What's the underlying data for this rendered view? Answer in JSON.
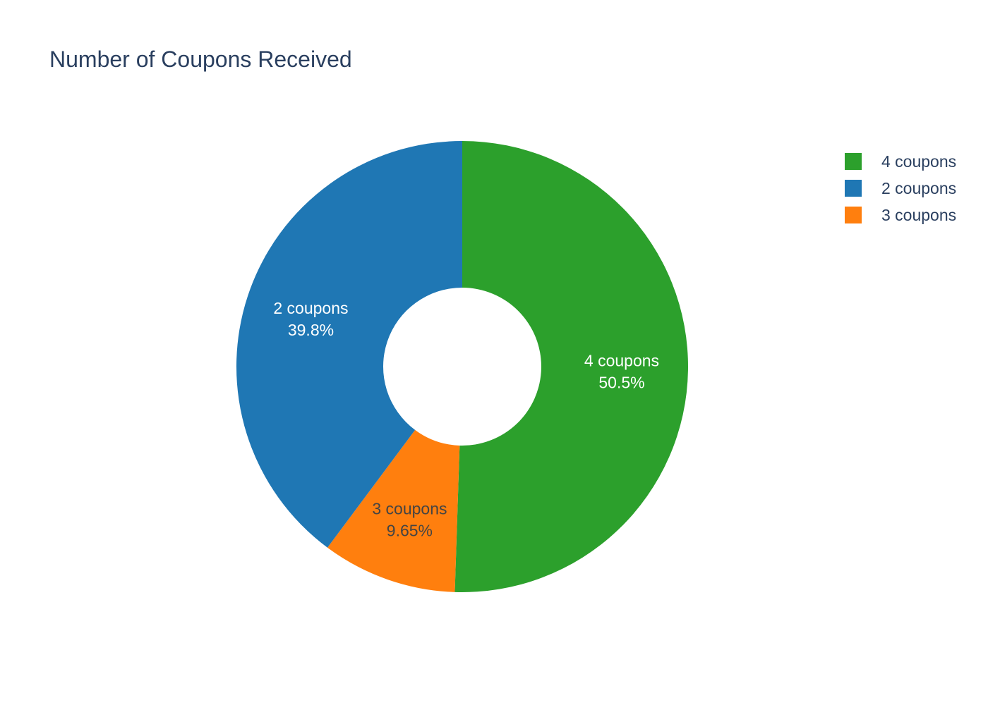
{
  "chart_data": {
    "type": "pie",
    "hole": 0.35,
    "title": "Number of Coupons Received",
    "slices": [
      {
        "label": "4 coupons",
        "value": 50.5,
        "percent_label": "50.5%",
        "color": "#2ca02c",
        "text_color": "#ffffff"
      },
      {
        "label": "3 coupons",
        "value": 9.65,
        "percent_label": "9.65%",
        "color": "#ff7f0e",
        "text_color": "#444444"
      },
      {
        "label": "2 coupons",
        "value": 39.8,
        "percent_label": "39.8%",
        "color": "#1f77b4",
        "text_color": "#ffffff"
      }
    ],
    "legend": {
      "placement": "top-right",
      "items": [
        {
          "label": "4 coupons",
          "color": "#2ca02c"
        },
        {
          "label": "2 coupons",
          "color": "#1f77b4"
        },
        {
          "label": "3 coupons",
          "color": "#ff7f0e"
        }
      ]
    }
  }
}
